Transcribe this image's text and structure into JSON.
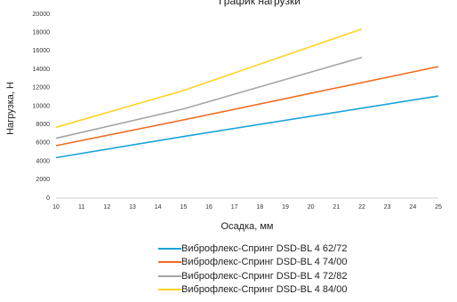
{
  "chart_data": {
    "type": "line",
    "title": "График нагрузки",
    "xlabel": "Осадка, мм",
    "ylabel": "Нагрузка, Н",
    "xlim": [
      10,
      25
    ],
    "ylim": [
      0,
      20000
    ],
    "x_ticks": [
      "10",
      "11",
      "12",
      "13",
      "14",
      "15",
      "16",
      "17",
      "18",
      "19",
      "20",
      "21",
      "22",
      "23",
      "24",
      "25"
    ],
    "y_ticks": [
      "0",
      "2000",
      "4000",
      "6000",
      "8000",
      "10000",
      "12000",
      "14000",
      "16000",
      "18000",
      "20000"
    ],
    "grid": false,
    "legend_position": "bottom",
    "series": [
      {
        "name": "Виброфлекс-Спринг DSD-BL 4 62/72",
        "color": "#1aa3d9",
        "x": [
          10,
          15,
          25
        ],
        "y": [
          4400,
          6700,
          11100
        ]
      },
      {
        "name": "Виброфлекс-Спринг DSD-BL 4 74/00",
        "color": "#f26b21",
        "x": [
          10,
          15,
          25
        ],
        "y": [
          5700,
          8500,
          14300
        ]
      },
      {
        "name": "Виброфлекс-Спринг DSD-BL 4 72/82",
        "color": "#a5a5a5",
        "x": [
          10,
          15,
          22
        ],
        "y": [
          6500,
          9700,
          15300
        ]
      },
      {
        "name": "Виброфлекс-Спринг DSD-BL 4 84/00",
        "color": "#ffd21f",
        "x": [
          10,
          15,
          22
        ],
        "y": [
          7700,
          11700,
          18400
        ]
      }
    ]
  }
}
